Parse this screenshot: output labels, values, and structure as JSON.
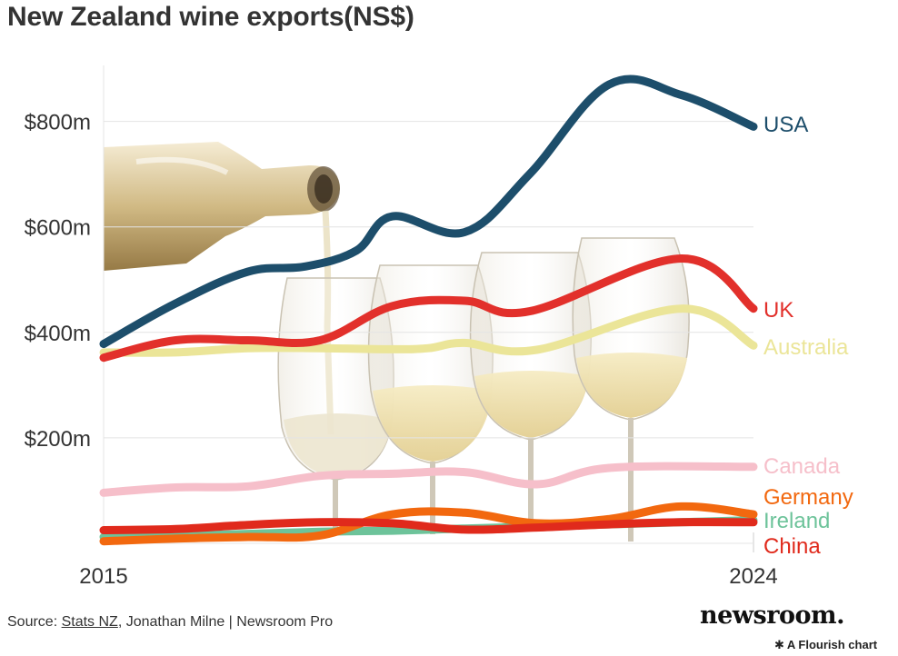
{
  "chart_data": {
    "type": "line",
    "title": "New Zealand wine exports(NS$)",
    "x_tick_labels": [
      "2015",
      "2024"
    ],
    "y_ticks": [
      200,
      400,
      600,
      800
    ],
    "y_tick_labels": [
      "$200m",
      "$400m",
      "$600m",
      "$800m"
    ],
    "xlim": [
      2015,
      2024
    ],
    "ylim": [
      0,
      900
    ],
    "grid": true,
    "legend": "labels at line ends (right)",
    "series": [
      {
        "name": "USA",
        "color": "#1d4e6b",
        "x": [
          2015,
          2016,
          2017,
          2017.8,
          2018.5,
          2019,
          2020,
          2020.9,
          2022,
          2023,
          2024
        ],
        "values": [
          378,
          455,
          515,
          525,
          555,
          620,
          590,
          700,
          870,
          850,
          790
        ]
      },
      {
        "name": "UK",
        "color": "#e2302b",
        "x": [
          2015,
          2016,
          2017,
          2018,
          2019,
          2020,
          2020.9,
          2023,
          2024
        ],
        "values": [
          352,
          385,
          385,
          385,
          450,
          460,
          440,
          540,
          445
        ]
      },
      {
        "name": "Australia",
        "color": "#ebe598",
        "x": [
          2015,
          2016,
          2017,
          2018,
          2019,
          2019.5,
          2020,
          2021,
          2023,
          2024
        ],
        "values": [
          362,
          362,
          370,
          370,
          368,
          370,
          380,
          367,
          445,
          375
        ]
      },
      {
        "name": "Canada",
        "color": "#f6bfca",
        "x": [
          2015,
          2016,
          2017,
          2018,
          2019,
          2020,
          2021,
          2022,
          2024
        ],
        "values": [
          96,
          106,
          108,
          128,
          132,
          135,
          112,
          143,
          145
        ]
      },
      {
        "name": "Germany",
        "color": "#f2680f",
        "x": [
          2015,
          2016,
          2017,
          2018,
          2019,
          2020,
          2021,
          2022,
          2023,
          2024
        ],
        "values": [
          4,
          9,
          12,
          15,
          55,
          58,
          38,
          46,
          70,
          55
        ]
      },
      {
        "name": "Ireland",
        "color": "#6dc39a",
        "x": [
          2015,
          2016,
          2017,
          2018,
          2019,
          2020,
          2021,
          2022,
          2023,
          2024
        ],
        "values": [
          12,
          14,
          18,
          22,
          24,
          28,
          32,
          36,
          40,
          44
        ]
      },
      {
        "name": "China",
        "color": "#e02a1c",
        "x": [
          2015,
          2016,
          2017,
          2018,
          2019,
          2020,
          2021,
          2022,
          2023,
          2024
        ],
        "values": [
          25,
          27,
          35,
          40,
          38,
          26,
          30,
          36,
          40,
          40
        ]
      }
    ]
  },
  "footer": {
    "source_prefix": "Source: ",
    "source_link": "Stats NZ",
    "source_rest": ", Jonathan Milne | Newsroom Pro"
  },
  "brand": {
    "logo_text": "newsroom.",
    "flourish_mark": "✱",
    "flourish_text": "A Flourish chart"
  },
  "image": {
    "icon": "wine-bottle-and-glasses-illustration"
  }
}
